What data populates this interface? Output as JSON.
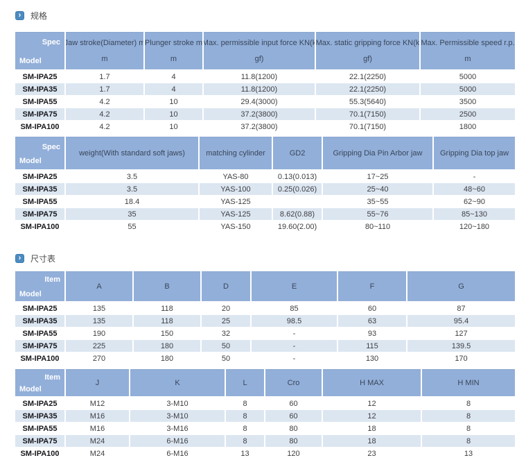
{
  "colors": {
    "header_bg": "#92afd9",
    "stripe_bg": "#dce6f1",
    "icon_bg": "#4c8bc0",
    "header_text": "#39465a",
    "body_text": "#3e3e42"
  },
  "sections": [
    {
      "id": "specs",
      "title": "规格",
      "tables": [
        {
          "corner": {
            "top": "Spec",
            "bottom": "Model"
          },
          "columns": [
            [
              "Jaw stroke(Diameter) m",
              "m"
            ],
            [
              "Plunger stroke m",
              "m"
            ],
            [
              "Max. permissible input force KN(k",
              "gf)"
            ],
            [
              "Max. static gripping force KN(k",
              "gf)"
            ],
            [
              "Max. Permissible speed r.p.",
              "m"
            ]
          ],
          "rows": [
            {
              "model": "SM-IPA25",
              "values": [
                "1.7",
                "4",
                "11.8(1200)",
                "22.1(2250)",
                "5000"
              ]
            },
            {
              "model": "SM-IPA35",
              "values": [
                "1.7",
                "4",
                "11.8(1200)",
                "22.1(2250)",
                "5000"
              ]
            },
            {
              "model": "SM-IPA55",
              "values": [
                "4.2",
                "10",
                "29.4(3000)",
                "55.3(5640)",
                "3500"
              ]
            },
            {
              "model": "SM-IPA75",
              "values": [
                "4.2",
                "10",
                "37.2(3800)",
                "70.1(7150)",
                "2500"
              ]
            },
            {
              "model": "SM-IPA100",
              "values": [
                "4.2",
                "10",
                "37.2(3800)",
                "70.1(7150)",
                "1800"
              ]
            }
          ]
        },
        {
          "corner": {
            "top": "Spec",
            "bottom": "Model"
          },
          "columns": [
            [
              "weight(With standard soft jaws)"
            ],
            [
              "matching cylinder"
            ],
            [
              "GD2"
            ],
            [
              "Gripping Dia Pin Arbor jaw"
            ],
            [
              "Gripping Dia top jaw"
            ]
          ],
          "rows": [
            {
              "model": "SM-IPA25",
              "values": [
                "3.5",
                "YAS-80",
                "0.13(0.013)",
                "17~25",
                "-"
              ]
            },
            {
              "model": "SM-IPA35",
              "values": [
                "3.5",
                "YAS-100",
                "0.25(0.026)",
                "25~40",
                "48~60"
              ]
            },
            {
              "model": "SM-IPA55",
              "values": [
                "18.4",
                "YAS-125",
                "",
                "35~55",
                "62~90"
              ]
            },
            {
              "model": "SM-IPA75",
              "values": [
                "35",
                "YAS-125",
                "8.62(0.88)",
                "55~76",
                "85~130"
              ]
            },
            {
              "model": "SM-IPA100",
              "values": [
                "55",
                "YAS-150",
                "19.60(2.00)",
                "80~110",
                "120~180"
              ]
            }
          ]
        }
      ]
    },
    {
      "id": "dimensions",
      "title": "尺寸表",
      "tables": [
        {
          "corner": {
            "top": "Item",
            "bottom": "Model"
          },
          "columns": [
            [
              "A"
            ],
            [
              "B"
            ],
            [
              "D"
            ],
            [
              "E"
            ],
            [
              "F"
            ],
            [
              "G"
            ]
          ],
          "rows": [
            {
              "model": "SM-IPA25",
              "values": [
                "135",
                "118",
                "20",
                "85",
                "60",
                "87"
              ]
            },
            {
              "model": "SM-IPA35",
              "values": [
                "135",
                "118",
                "25",
                "98.5",
                "63",
                "95.4"
              ]
            },
            {
              "model": "SM-IPA55",
              "values": [
                "190",
                "150",
                "32",
                "-",
                "93",
                "127"
              ]
            },
            {
              "model": "SM-IPA75",
              "values": [
                "225",
                "180",
                "50",
                "-",
                "115",
                "139.5"
              ]
            },
            {
              "model": "SM-IPA100",
              "values": [
                "270",
                "180",
                "50",
                "-",
                "130",
                "170"
              ]
            }
          ]
        },
        {
          "corner": {
            "top": "Item",
            "bottom": "Model"
          },
          "columns": [
            [
              "J"
            ],
            [
              "K"
            ],
            [
              "L"
            ],
            [
              "Cro"
            ],
            [
              "H MAX"
            ],
            [
              "H MIN"
            ]
          ],
          "rows": [
            {
              "model": "SM-IPA25",
              "values": [
                "M12",
                "3-M10",
                "8",
                "60",
                "12",
                "8"
              ]
            },
            {
              "model": "SM-IPA35",
              "values": [
                "M16",
                "3-M10",
                "8",
                "60",
                "12",
                "8"
              ]
            },
            {
              "model": "SM-IPA55",
              "values": [
                "M16",
                "3-M16",
                "8",
                "80",
                "18",
                "8"
              ]
            },
            {
              "model": "SM-IPA75",
              "values": [
                "M24",
                "6-M16",
                "8",
                "80",
                "18",
                "8"
              ]
            },
            {
              "model": "SM-IPA100",
              "values": [
                "M24",
                "6-M16",
                "13",
                "120",
                "23",
                "13"
              ]
            }
          ]
        }
      ]
    }
  ]
}
